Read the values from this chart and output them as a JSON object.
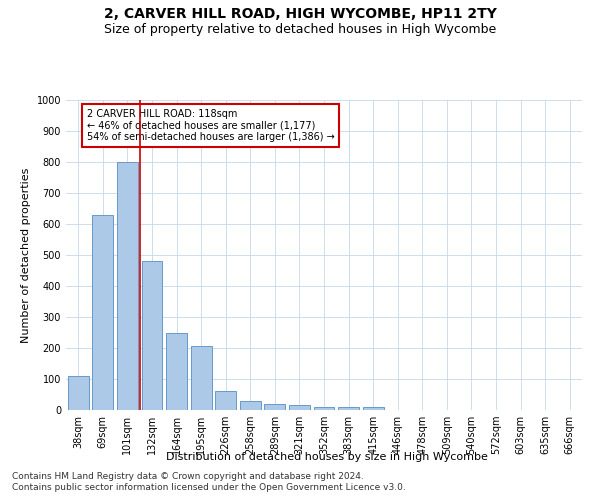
{
  "title1": "2, CARVER HILL ROAD, HIGH WYCOMBE, HP11 2TY",
  "title2": "Size of property relative to detached houses in High Wycombe",
  "xlabel": "Distribution of detached houses by size in High Wycombe",
  "ylabel": "Number of detached properties",
  "footer1": "Contains HM Land Registry data © Crown copyright and database right 2024.",
  "footer2": "Contains public sector information licensed under the Open Government Licence v3.0.",
  "categories": [
    "38sqm",
    "69sqm",
    "101sqm",
    "132sqm",
    "164sqm",
    "195sqm",
    "226sqm",
    "258sqm",
    "289sqm",
    "321sqm",
    "352sqm",
    "383sqm",
    "415sqm",
    "446sqm",
    "478sqm",
    "509sqm",
    "540sqm",
    "572sqm",
    "603sqm",
    "635sqm",
    "666sqm"
  ],
  "values": [
    110,
    630,
    800,
    480,
    250,
    205,
    60,
    28,
    20,
    15,
    10,
    10,
    10,
    0,
    0,
    0,
    0,
    0,
    0,
    0,
    0
  ],
  "bar_color": "#adc9e8",
  "bar_edge_color": "#6699cc",
  "vline_index": 2,
  "vline_color": "#cc0000",
  "annotation_text": "2 CARVER HILL ROAD: 118sqm\n← 46% of detached houses are smaller (1,177)\n54% of semi-detached houses are larger (1,386) →",
  "annotation_box_color": "#ffffff",
  "annotation_box_edge": "#cc0000",
  "ylim": [
    0,
    1000
  ],
  "yticks": [
    0,
    100,
    200,
    300,
    400,
    500,
    600,
    700,
    800,
    900,
    1000
  ],
  "bg_color": "#ffffff",
  "grid_color": "#c8d8e8",
  "title1_fontsize": 10,
  "title2_fontsize": 9,
  "axis_fontsize": 8,
  "tick_fontsize": 7,
  "footer_fontsize": 6.5
}
